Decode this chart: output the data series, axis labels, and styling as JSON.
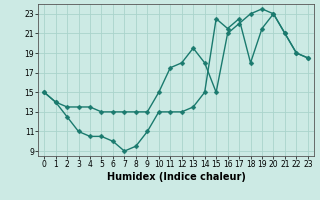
{
  "xlabel": "Humidex (Indice chaleur)",
  "bg_color": "#cceae4",
  "grid_color": "#aad4cc",
  "line_color": "#1a7a6e",
  "xlim": [
    -0.5,
    23.5
  ],
  "ylim": [
    8.5,
    24.0
  ],
  "yticks": [
    9,
    11,
    13,
    15,
    17,
    19,
    21,
    23
  ],
  "xticks": [
    0,
    1,
    2,
    3,
    4,
    5,
    6,
    7,
    8,
    9,
    10,
    11,
    12,
    13,
    14,
    15,
    16,
    17,
    18,
    19,
    20,
    21,
    22,
    23
  ],
  "series1_x": [
    0,
    1,
    2,
    3,
    4,
    5,
    6,
    7,
    8,
    9,
    10,
    11,
    12,
    13,
    14,
    15,
    16,
    17,
    18,
    19,
    20,
    21,
    22,
    23
  ],
  "series1_y": [
    15.0,
    14.0,
    13.5,
    13.5,
    13.5,
    13.0,
    13.0,
    13.0,
    13.0,
    13.0,
    15.0,
    17.5,
    18.0,
    19.5,
    18.0,
    15.0,
    21.0,
    22.0,
    23.0,
    23.5,
    23.0,
    21.0,
    19.0,
    18.5
  ],
  "series2_x": [
    0,
    1,
    2,
    3,
    4,
    5,
    6,
    7,
    8,
    9,
    10,
    11,
    12,
    13,
    14,
    15,
    16,
    17,
    18,
    19,
    20,
    21,
    22,
    23
  ],
  "series2_y": [
    15.0,
    14.0,
    12.5,
    11.0,
    10.5,
    10.5,
    10.0,
    9.0,
    9.5,
    11.0,
    13.0,
    13.0,
    13.0,
    13.5,
    15.0,
    22.5,
    21.5,
    22.5,
    18.0,
    21.5,
    23.0,
    21.0,
    19.0,
    18.5
  ],
  "markersize": 2.5,
  "linewidth": 1.0,
  "xlabel_fontsize": 7,
  "tick_fontsize": 5.5
}
